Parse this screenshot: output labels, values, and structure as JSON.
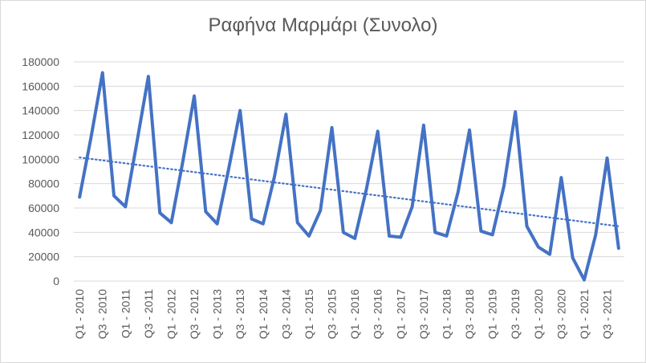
{
  "chart_data": {
    "type": "line",
    "title": "Ραφήνα Μαρμάρι (Συνολο)",
    "xlabel": "",
    "ylabel": "",
    "ylim": [
      0,
      180000
    ],
    "y_ticks": [
      0,
      20000,
      40000,
      60000,
      80000,
      100000,
      120000,
      140000,
      160000,
      180000
    ],
    "grid": true,
    "legend": "none",
    "x": [
      "Q1 - 2010",
      "Q2 - 2010",
      "Q3 - 2010",
      "Q4 - 2010",
      "Q1 - 2011",
      "Q2 - 2011",
      "Q3 - 2011",
      "Q4 - 2011",
      "Q1 - 2012",
      "Q2 - 2012",
      "Q3 - 2012",
      "Q4 - 2012",
      "Q1 - 2013",
      "Q2 - 2013",
      "Q3 - 2013",
      "Q4 - 2013",
      "Q1 - 2014",
      "Q2 - 2014",
      "Q3 - 2014",
      "Q4 - 2014",
      "Q1 - 2015",
      "Q2 - 2015",
      "Q3 - 2015",
      "Q4 - 2015",
      "Q1 - 2016",
      "Q2 - 2016",
      "Q3 - 2016",
      "Q4 - 2016",
      "Q1 - 2017",
      "Q2 - 2017",
      "Q3 - 2017",
      "Q4 - 2017",
      "Q1 - 2018",
      "Q2 - 2018",
      "Q3 - 2018",
      "Q4 - 2018",
      "Q1 - 2019",
      "Q2 - 2019",
      "Q3 - 2019",
      "Q4 - 2019",
      "Q1 - 2020",
      "Q2 - 2020",
      "Q3 - 2020",
      "Q4 - 2020",
      "Q1 - 2021",
      "Q2 - 2021",
      "Q3 - 2021",
      "Q4 - 2021"
    ],
    "x_tick_labels": [
      "Q1 - 2010",
      "Q3 - 2010",
      "Q1 - 2011",
      "Q3 - 2011",
      "Q1 - 2012",
      "Q3 - 2012",
      "Q1 - 2013",
      "Q3 - 2013",
      "Q1 - 2014",
      "Q3 - 2014",
      "Q1 - 2015",
      "Q3 - 2015",
      "Q1 - 2016",
      "Q3 - 2016",
      "Q1 - 2017",
      "Q3 - 2017",
      "Q1 - 2018",
      "Q3 - 2018",
      "Q1 - 2019",
      "Q3 - 2019",
      "Q1 - 2020",
      "Q3 - 2020",
      "Q1 - 2021",
      "Q3 - 2021"
    ],
    "series": [
      {
        "values": [
          69000,
          118000,
          171000,
          70000,
          61000,
          114000,
          168000,
          56000,
          48000,
          98000,
          152000,
          57000,
          47000,
          92000,
          140000,
          51000,
          47000,
          86000,
          137000,
          48000,
          37000,
          58000,
          126000,
          40000,
          35000,
          75000,
          123000,
          37000,
          36000,
          61000,
          128000,
          40000,
          37000,
          73000,
          124000,
          41000,
          38000,
          78000,
          139000,
          45000,
          28000,
          22000,
          85000,
          19000,
          1000,
          38000,
          101000,
          27000
        ],
        "color": "#4472c4",
        "style": "solid"
      },
      {
        "trendline": "linear",
        "values_start_end": [
          101500,
          45000
        ],
        "color": "#4472c4",
        "style": "dotted"
      }
    ]
  }
}
